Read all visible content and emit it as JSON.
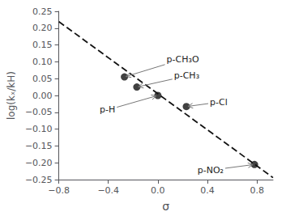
{
  "chart_data": {
    "type": "scatter",
    "xlabel": "σ",
    "ylabel": "log(kₓ/kH)",
    "series": [
      {
        "type": "line",
        "line_style": "dashed",
        "color": "#111111",
        "x": [
          -0.8,
          0.93
        ],
        "values": [
          0.2194,
          -0.24424
        ]
      },
      {
        "type": "scatter",
        "marker": "circle",
        "color": "#111111",
        "x": [
          -0.27,
          -0.17,
          0.0,
          0.23,
          0.78
        ],
        "values": [
          0.055,
          0.025,
          0.0,
          -0.033,
          -0.205
        ]
      }
    ],
    "annotations": [
      {
        "text": "p-CH₃O",
        "xy": [
          -0.27,
          0.055
        ],
        "xytext": [
          0.07,
          0.108
        ],
        "color": "#777777"
      },
      {
        "text": "p-CH₃",
        "xy": [
          -0.17,
          0.025
        ],
        "xytext": [
          0.13,
          0.058
        ],
        "color": "#777777"
      },
      {
        "text": "p-H",
        "xy": [
          0.0,
          0.0
        ],
        "xytext": [
          -0.47,
          -0.043
        ],
        "color": "#777777"
      },
      {
        "text": "p-Cl",
        "xy": [
          0.23,
          -0.033
        ],
        "xytext": [
          0.42,
          -0.02
        ],
        "color": "#777777"
      },
      {
        "text": "p-NO₂",
        "xy": [
          0.78,
          -0.205
        ],
        "xytext": [
          0.32,
          -0.222
        ],
        "color": "#777777"
      }
    ],
    "xlim": [
      -0.8,
      0.93
    ],
    "ylim": [
      -0.25,
      0.25
    ],
    "xticks": [
      {
        "value": -0.8,
        "label": "−0.8"
      },
      {
        "value": -0.4,
        "label": "−0.4"
      },
      {
        "value": 0.0,
        "label": "0.0"
      },
      0.4,
      0.8
    ],
    "yticks": [
      {
        "value": -0.25,
        "label": "−0.25"
      },
      {
        "value": -0.2,
        "label": "−0.20"
      },
      {
        "value": -0.15,
        "label": "−0.15"
      },
      {
        "value": -0.1,
        "label": "−0.10"
      },
      {
        "value": -0.05,
        "label": "−0.05"
      },
      {
        "value": 0.0,
        "label": "0.00"
      },
      0.05,
      {
        "value": 0.1,
        "label": "0.10"
      },
      0.15,
      {
        "value": 0.2,
        "label": "0.20"
      },
      0.25
    ],
    "grid": false
  }
}
